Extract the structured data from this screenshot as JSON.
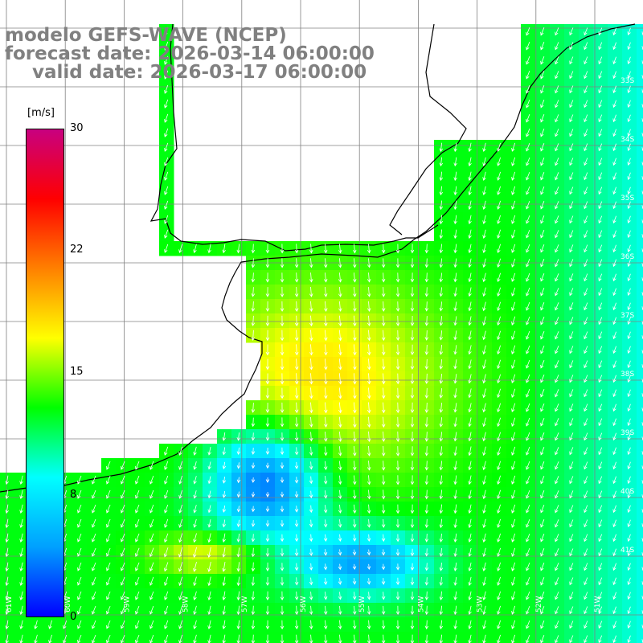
{
  "title": {
    "line1": "modelo GEFS-WAVE (NCEP)",
    "line2": "forecast date: 2026-03-14 06:00:00",
    "line3": "valid date: 2026-03-17 06:00:00"
  },
  "colorbar": {
    "unit": "[m/s]",
    "ticks": [
      "30",
      "22",
      "15",
      "8",
      "0"
    ],
    "colors": [
      "#0000ff",
      "#00a0ff",
      "#00ffff",
      "#00ff00",
      "#ffff00",
      "#ff8000",
      "#ff0000",
      "#c80080"
    ]
  },
  "lat_labels": [
    "33S",
    "34S",
    "35S",
    "36S",
    "37S",
    "38S",
    "39S",
    "40S",
    "41S"
  ],
  "lon_labels": [
    "61W",
    "60W",
    "59W",
    "58W",
    "57W",
    "56W",
    "55W",
    "54W",
    "53W",
    "52W",
    "51W"
  ],
  "colors": {
    "land": "#ffffff",
    "coast": "#000000",
    "grid": "#808080",
    "arrow": "#ffffff",
    "title": "#808080"
  }
}
